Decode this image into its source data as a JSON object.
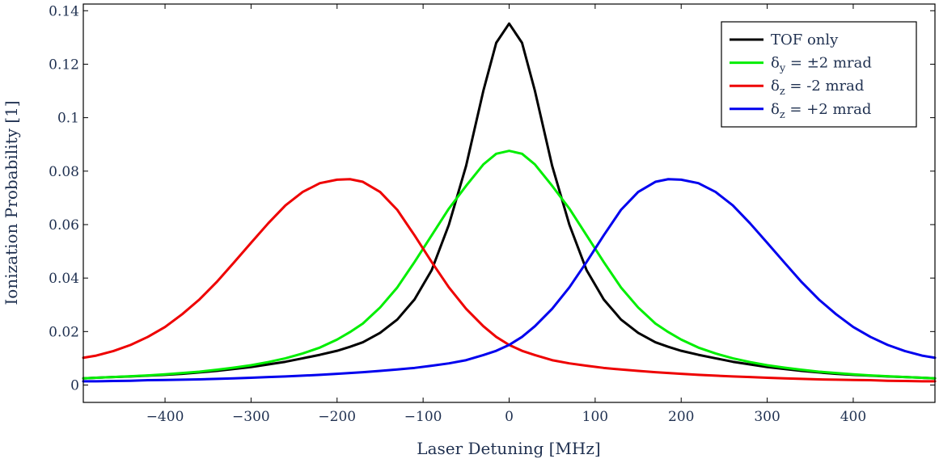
{
  "chart_data": {
    "type": "line",
    "title": "",
    "xlabel": "Laser Detuning [MHz]",
    "ylabel": "Ionization Probability [1]",
    "xlim": [
      -495,
      495
    ],
    "ylim": [
      -0.0065,
      0.1425
    ],
    "xticks": [
      -400,
      -300,
      -200,
      -100,
      0,
      100,
      200,
      300,
      400
    ],
    "xtick_labels": [
      "−400",
      "−300",
      "−200",
      "−100",
      "0",
      "100",
      "200",
      "300",
      "400"
    ],
    "yticks": [
      0,
      0.02,
      0.04,
      0.06,
      0.08,
      0.1,
      0.12,
      0.14
    ],
    "ytick_labels": [
      "0",
      "0.02",
      "0.04",
      "0.06",
      "0.08",
      "0.1",
      "0.12",
      "0.14"
    ],
    "legend_position": "top-right",
    "grid": false,
    "x": [
      -495,
      -480,
      -460,
      -440,
      -420,
      -400,
      -380,
      -360,
      -340,
      -320,
      -300,
      -280,
      -260,
      -240,
      -220,
      -200,
      -185,
      -170,
      -150,
      -130,
      -110,
      -90,
      -70,
      -50,
      -30,
      -15,
      0,
      15,
      30,
      50,
      70,
      90,
      110,
      130,
      150,
      170,
      185,
      200,
      220,
      240,
      260,
      280,
      300,
      320,
      340,
      360,
      380,
      400,
      420,
      440,
      460,
      480,
      495
    ],
    "series": [
      {
        "name": "TOF only",
        "legend_main": "TOF only",
        "legend_sub": "",
        "legend_tail": "",
        "color": "#000000",
        "values": [
          0.0025,
          0.0027,
          0.003,
          0.0032,
          0.0035,
          0.0038,
          0.0042,
          0.0047,
          0.0053,
          0.006,
          0.0067,
          0.0077,
          0.0087,
          0.01,
          0.0113,
          0.0128,
          0.0143,
          0.016,
          0.0195,
          0.0245,
          0.032,
          0.043,
          0.06,
          0.082,
          0.11,
          0.128,
          0.1352,
          0.128,
          0.11,
          0.082,
          0.06,
          0.043,
          0.032,
          0.0245,
          0.0195,
          0.016,
          0.0143,
          0.0128,
          0.0113,
          0.01,
          0.0087,
          0.0077,
          0.0067,
          0.006,
          0.0053,
          0.0047,
          0.0042,
          0.0038,
          0.0035,
          0.0032,
          0.003,
          0.0027,
          0.0025
        ]
      },
      {
        "name": "δy = ±2 mrad",
        "legend_main": "δ",
        "legend_sub": "y",
        "legend_tail": " = ±2 mrad",
        "color": "#00ee00",
        "values": [
          0.0025,
          0.0027,
          0.003,
          0.0033,
          0.0036,
          0.004,
          0.0045,
          0.005,
          0.0057,
          0.0065,
          0.0074,
          0.0086,
          0.01,
          0.0118,
          0.014,
          0.017,
          0.0198,
          0.023,
          0.029,
          0.0365,
          0.046,
          0.056,
          0.066,
          0.0745,
          0.0825,
          0.0865,
          0.0876,
          0.0865,
          0.0825,
          0.0745,
          0.066,
          0.056,
          0.046,
          0.0365,
          0.029,
          0.023,
          0.0198,
          0.017,
          0.014,
          0.0118,
          0.01,
          0.0086,
          0.0074,
          0.0065,
          0.0057,
          0.005,
          0.0045,
          0.004,
          0.0036,
          0.0033,
          0.003,
          0.0027,
          0.0025
        ]
      },
      {
        "name": "δz = -2 mrad",
        "legend_main": "δ",
        "legend_sub": "z",
        "legend_tail": " = -2 mrad",
        "color": "#ee0000",
        "values": [
          0.0102,
          0.011,
          0.0127,
          0.015,
          0.018,
          0.0217,
          0.0265,
          0.032,
          0.0385,
          0.0458,
          0.0532,
          0.0605,
          0.0672,
          0.0722,
          0.0755,
          0.0768,
          0.077,
          0.076,
          0.0722,
          0.0655,
          0.056,
          0.046,
          0.0365,
          0.0285,
          0.022,
          0.018,
          0.015,
          0.0128,
          0.0112,
          0.0093,
          0.0081,
          0.0072,
          0.0064,
          0.0058,
          0.0053,
          0.0048,
          0.0045,
          0.0042,
          0.0038,
          0.0035,
          0.0032,
          0.003,
          0.0027,
          0.0025,
          0.0023,
          0.0021,
          0.002,
          0.0019,
          0.0018,
          0.0016,
          0.0015,
          0.0014,
          0.0014
        ]
      },
      {
        "name": "δz = +2 mrad",
        "legend_main": "δ",
        "legend_sub": "z",
        "legend_tail": " = +2 mrad",
        "color": "#0000ee",
        "values": [
          0.0014,
          0.0014,
          0.0015,
          0.0016,
          0.0018,
          0.0019,
          0.002,
          0.0021,
          0.0023,
          0.0025,
          0.0027,
          0.003,
          0.0032,
          0.0035,
          0.0038,
          0.0042,
          0.0045,
          0.0048,
          0.0053,
          0.0058,
          0.0064,
          0.0072,
          0.0081,
          0.0093,
          0.0112,
          0.0128,
          0.015,
          0.018,
          0.022,
          0.0285,
          0.0365,
          0.046,
          0.056,
          0.0655,
          0.0722,
          0.076,
          0.077,
          0.0768,
          0.0755,
          0.0722,
          0.0672,
          0.0605,
          0.0532,
          0.0458,
          0.0385,
          0.032,
          0.0265,
          0.0217,
          0.018,
          0.015,
          0.0127,
          0.011,
          0.0102
        ]
      }
    ]
  }
}
